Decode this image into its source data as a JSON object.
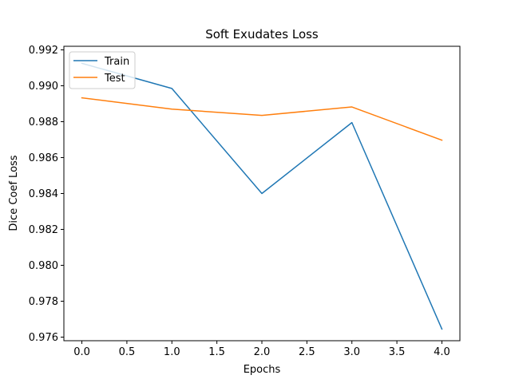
{
  "chart_data": {
    "type": "line",
    "title": "Soft Exudates Loss",
    "xlabel": "Epochs",
    "ylabel": "Dice Coef Loss",
    "x": [
      0,
      1,
      2,
      3,
      4
    ],
    "series": [
      {
        "name": "Train",
        "color": "#1f77b4",
        "values": [
          0.99125,
          0.98985,
          0.984,
          0.98795,
          0.97645
        ]
      },
      {
        "name": "Test",
        "color": "#ff7f0e",
        "values": [
          0.98933,
          0.9887,
          0.98835,
          0.98882,
          0.98697
        ]
      }
    ],
    "xlim": [
      -0.2,
      4.2
    ],
    "ylim": [
      0.9758,
      0.9922
    ],
    "xticks": [
      0.0,
      0.5,
      1.0,
      1.5,
      2.0,
      2.5,
      3.0,
      3.5,
      4.0
    ],
    "xtick_labels": [
      "0.0",
      "0.5",
      "1.0",
      "1.5",
      "2.0",
      "2.5",
      "3.0",
      "3.5",
      "4.0"
    ],
    "yticks": [
      0.976,
      0.978,
      0.98,
      0.982,
      0.984,
      0.986,
      0.988,
      0.99,
      0.992
    ],
    "ytick_labels": [
      "0.976",
      "0.978",
      "0.980",
      "0.982",
      "0.984",
      "0.986",
      "0.988",
      "0.990",
      "0.992"
    ],
    "grid": false,
    "legend_position": "upper left"
  }
}
